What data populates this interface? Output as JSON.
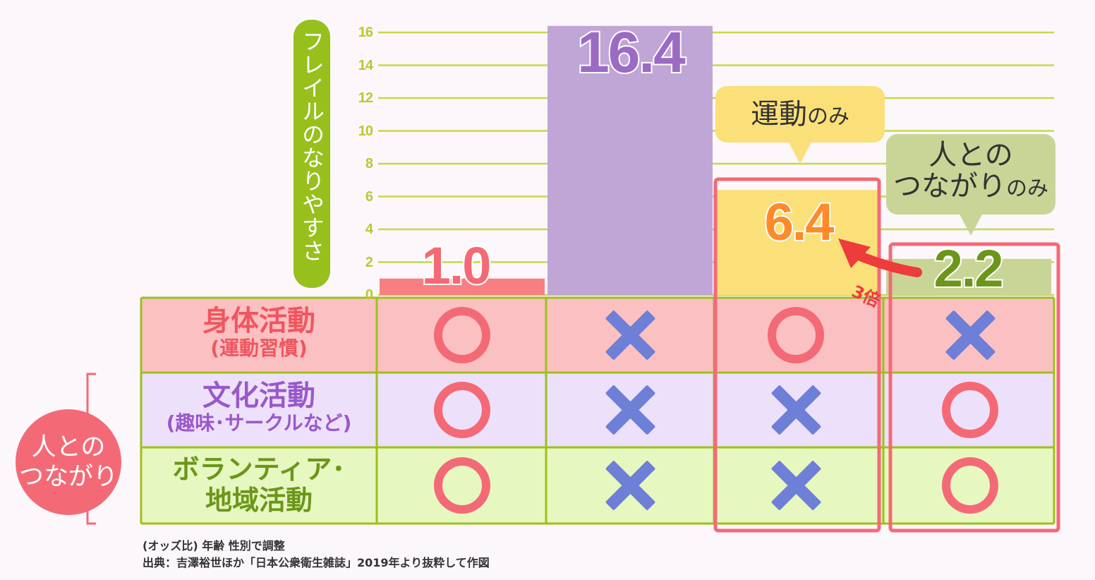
{
  "chart_data": {
    "type": "bar",
    "ylabel": "フレイルのなりやすさ",
    "ylim": [
      0,
      16
    ],
    "yticks": [
      "0",
      "2",
      "4",
      "6",
      "8",
      "10",
      "12",
      "14",
      "16"
    ],
    "grid": true,
    "categories": [
      "",
      "",
      "運動のみ",
      "人とのつながりのみ"
    ],
    "values": [
      1.0,
      16.4,
      6.4,
      2.2
    ],
    "value_labels": [
      "1.0",
      "16.4",
      "6.4",
      "2.2"
    ],
    "bar_colors": [
      "#f77f84",
      "#c0a6d6",
      "#fbe07a",
      "#c9d597"
    ],
    "annotation": "3倍",
    "table": {
      "rows": [
        {
          "label": "身体活動",
          "sublabel": "(運動習慣)",
          "marks": [
            "○",
            "×",
            "○",
            "×"
          ]
        },
        {
          "label": "文化活動",
          "sublabel": "(趣味･サークルなど)",
          "marks": [
            "○",
            "×",
            "×",
            "○"
          ]
        },
        {
          "label": "ボランティア･",
          "sublabel": "地域活動",
          "marks": [
            "○",
            "×",
            "×",
            "○"
          ]
        }
      ]
    }
  },
  "callouts": {
    "exercise_main": "運動",
    "exercise_small": "のみ",
    "social_line1": "人との",
    "social_line2_main": "つながり",
    "social_line2_small": "のみ"
  },
  "group_label": {
    "line1": "人との",
    "line2": "つながり"
  },
  "footnotes": {
    "line1": "(オッズ比) 年齢 性別で調整",
    "line2": "出典：吉澤裕世ほか「日本公衆衛生雑誌」2019年より抜粋して作図"
  },
  "colors": {
    "grid": "#c5d94a",
    "table_border": "#9dc11a",
    "row1": "#fbc0c1",
    "row2": "#ede0fa",
    "row3": "#e6f7c0",
    "highlight": "#f36a76",
    "circle": "#f36a76",
    "cross": "#6d7fd6",
    "arrow": "#ee3b3b"
  }
}
